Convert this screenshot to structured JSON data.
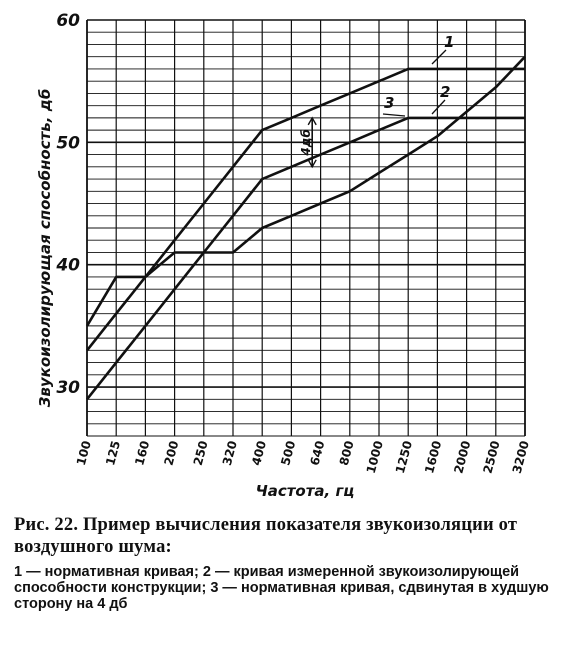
{
  "chart_data": {
    "type": "line",
    "ylabel": "Звукоизолирующая способность, дб",
    "xlabel": "Частота, гц",
    "categories": [
      "100",
      "125",
      "160",
      "200",
      "250",
      "320",
      "400",
      "500",
      "640",
      "800",
      "1000",
      "1250",
      "1600",
      "2000",
      "2500",
      "3200"
    ],
    "y_tick_labels": [
      "30",
      "40",
      "50",
      "60"
    ],
    "ylim": [
      26,
      60
    ],
    "grid": true,
    "series": [
      {
        "name": "1",
        "values": [
          33,
          36,
          39,
          42,
          45,
          48,
          51,
          52,
          53,
          54,
          55,
          56,
          56,
          56,
          56,
          56
        ]
      },
      {
        "name": "2",
        "values": [
          35,
          39,
          39,
          41,
          41,
          41,
          43,
          44,
          45,
          46,
          47.5,
          49,
          50.5,
          52.5,
          54.5,
          57
        ]
      },
      {
        "name": "3",
        "values": [
          29,
          32,
          35,
          38,
          41,
          44,
          47,
          48,
          49,
          50,
          51,
          52,
          52,
          52,
          52,
          52
        ]
      }
    ],
    "annotations": [
      {
        "text": "4дб",
        "between_series": [
          "1",
          "3"
        ],
        "at_x": "400"
      }
    ]
  },
  "caption": {
    "title": "Рис. 22. Пример вычисления показателя звукоизоляции от воздушного шума:",
    "text": "1 — нормативная кривая; 2 — кривая измеренной звукоизолирующей способности конструкции; 3 — нормативная кривая, сдвинутая в худшую сторону на 4 дб"
  }
}
